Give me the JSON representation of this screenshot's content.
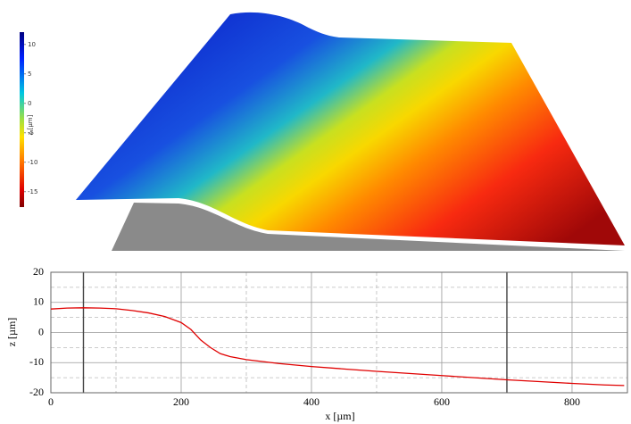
{
  "chart_data": [
    {
      "type": "surface",
      "zlabel": "z [µm]",
      "zlim": [
        -17.6,
        12.1
      ],
      "zticks": [
        10,
        5,
        0,
        -5,
        -10,
        -15
      ]
    },
    {
      "type": "line",
      "xlabel": "x [µm]",
      "ylabel": "z [µm]",
      "x": [
        0,
        25,
        50,
        75,
        100,
        125,
        150,
        175,
        200,
        215,
        230,
        245,
        260,
        275,
        300,
        350,
        400,
        450,
        500,
        550,
        600,
        650,
        700,
        750,
        800,
        850,
        880
      ],
      "values": [
        7.8,
        8.1,
        8.2,
        8.1,
        7.9,
        7.3,
        6.5,
        5.3,
        3.3,
        1,
        -2.5,
        -5,
        -7,
        -8,
        -9,
        -10.3,
        -11.3,
        -12.1,
        -12.9,
        -13.6,
        -14.3,
        -15,
        -15.7,
        -16.3,
        -16.9,
        -17.4,
        -17.6
      ],
      "color": "#e00000",
      "xlim": [
        0,
        885
      ],
      "ylim": [
        -20,
        20
      ],
      "xticks": [
        0,
        200,
        400,
        600,
        800
      ],
      "yticks": [
        -20,
        -10,
        0,
        10,
        20
      ],
      "xminor": [
        100,
        300,
        500,
        700
      ],
      "yminor": [
        -15,
        -5,
        5,
        15
      ],
      "markers": [
        50,
        700
      ],
      "grid": true
    }
  ]
}
